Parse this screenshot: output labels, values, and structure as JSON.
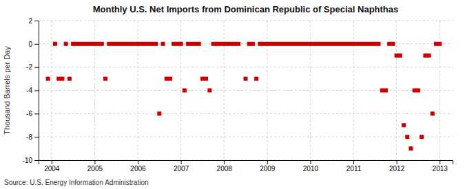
{
  "chart_data": {
    "type": "scatter",
    "title": "Monthly U.S. Net Imports from Dominican Republic of Special Naphthas",
    "ylabel": "Thousand Barrels per Day",
    "source": "Source: U.S. Energy Information Administration",
    "color": "#cc0000",
    "marker": "square",
    "grid": true,
    "xlim": [
      2003.7,
      2013.3
    ],
    "xticks": [
      2004,
      2005,
      2006,
      2007,
      2008,
      2009,
      2010,
      2011,
      2012,
      2013
    ],
    "ylim": [
      -10,
      2
    ],
    "yticks": [
      -10,
      -8,
      -6,
      -4,
      -2,
      0,
      2
    ],
    "x": [
      2003.917,
      2004.083,
      2004.167,
      2004.25,
      2004.333,
      2004.417,
      2004.5,
      2004.583,
      2004.667,
      2004.75,
      2004.833,
      2004.917,
      2005.0,
      2005.083,
      2005.167,
      2005.25,
      2005.333,
      2005.417,
      2005.5,
      2005.583,
      2005.667,
      2005.75,
      2005.833,
      2005.917,
      2006.0,
      2006.083,
      2006.167,
      2006.25,
      2006.333,
      2006.417,
      2006.5,
      2006.583,
      2006.667,
      2006.75,
      2006.833,
      2006.917,
      2007.0,
      2007.083,
      2007.167,
      2007.25,
      2007.333,
      2007.417,
      2007.5,
      2007.583,
      2007.667,
      2007.75,
      2007.833,
      2007.917,
      2008.0,
      2008.083,
      2008.167,
      2008.25,
      2008.333,
      2008.5,
      2008.583,
      2008.667,
      2008.75,
      2008.833,
      2008.917,
      2009.0,
      2009.083,
      2009.167,
      2009.25,
      2009.333,
      2009.417,
      2009.5,
      2009.583,
      2009.667,
      2009.75,
      2009.833,
      2009.917,
      2010.0,
      2010.083,
      2010.167,
      2010.25,
      2010.333,
      2010.417,
      2010.5,
      2010.583,
      2010.667,
      2010.75,
      2010.833,
      2010.917,
      2011.0,
      2011.083,
      2011.167,
      2011.25,
      2011.333,
      2011.417,
      2011.5,
      2011.583,
      2011.667,
      2011.75,
      2011.833,
      2011.917,
      2012.0,
      2012.083,
      2012.167,
      2012.25,
      2012.333,
      2012.417,
      2012.5,
      2012.583,
      2012.667,
      2012.75,
      2012.833,
      2012.917,
      2013.0
    ],
    "values": [
      -3.0,
      0.0,
      -3.0,
      -3.0,
      0.0,
      -3.0,
      0.0,
      0.0,
      0.0,
      0.0,
      0.0,
      0.0,
      0.0,
      0.0,
      0.0,
      -3.0,
      0.0,
      0.0,
      0.0,
      0.0,
      0.0,
      0.0,
      0.0,
      0.0,
      0.0,
      0.0,
      0.0,
      0.0,
      0.0,
      0.0,
      -6.0,
      0.0,
      -3.0,
      -3.0,
      0.0,
      0.0,
      0.0,
      -4.0,
      0.0,
      0.0,
      0.0,
      0.0,
      -3.0,
      -3.0,
      -4.0,
      0.0,
      0.0,
      0.0,
      0.0,
      0.0,
      0.0,
      0.0,
      0.0,
      -3.0,
      0.0,
      0.0,
      -3.0,
      0.0,
      0.0,
      0.0,
      0.0,
      0.0,
      0.0,
      0.0,
      0.0,
      0.0,
      0.0,
      0.0,
      0.0,
      0.0,
      0.0,
      0.0,
      0.0,
      0.0,
      0.0,
      0.0,
      0.0,
      0.0,
      0.0,
      0.0,
      0.0,
      0.0,
      0.0,
      0.0,
      0.0,
      0.0,
      0.0,
      0.0,
      0.0,
      0.0,
      0.0,
      -4.0,
      -4.0,
      0.0,
      0.0,
      -1.0,
      -1.0,
      -7.0,
      -8.0,
      -9.0,
      -4.0,
      -4.0,
      -8.0,
      -1.0,
      -1.0,
      -6.0,
      0.0,
      0.0
    ]
  }
}
